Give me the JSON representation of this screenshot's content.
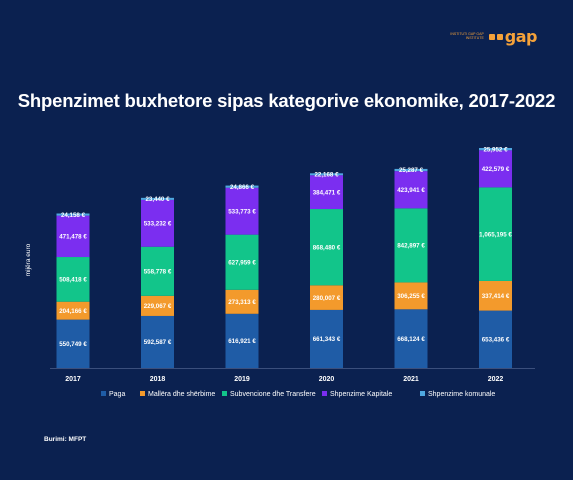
{
  "logo": {
    "tagline": "INSTITUTI GAP GAP INSTITUTE",
    "brand": "gap"
  },
  "colors": {
    "background": "#0b2150",
    "accent": "#f5a23a"
  },
  "source": "Burimi: MFPT",
  "chart_data": {
    "type": "bar",
    "stacked": true,
    "title": "Shpenzimet buxhetore sipas kategorive ekonomike, 2017-2022",
    "ylabel": "mijëra euro",
    "xlabel": "",
    "categories": [
      "2017",
      "2018",
      "2019",
      "2020",
      "2021",
      "2022"
    ],
    "legend_position": "bottom",
    "grid": false,
    "value_suffix": " €",
    "series": [
      {
        "name": "Paga",
        "color": "#1f5ca6",
        "values": [
          550749,
          592587,
          616921,
          661343,
          668124,
          653436
        ],
        "labels": [
          "550,749 €",
          "592,587 €",
          "616,921 €",
          "661,343 €",
          "668,124 €",
          "653,436 €"
        ]
      },
      {
        "name": "Mallëra dhe shërbime",
        "color": "#f39a2c",
        "values": [
          204166,
          229067,
          273313,
          280007,
          306255,
          337414
        ],
        "labels": [
          "204,166 €",
          "229,067 €",
          "273,313 €",
          "280,007 €",
          "306,255 €",
          "337,414 €"
        ]
      },
      {
        "name": "Subvencione dhe Transfere",
        "color": "#12c58a",
        "values": [
          508418,
          558778,
          627959,
          868480,
          842897,
          1065195
        ],
        "labels": [
          "508,418 €",
          "558,778 €",
          "627,959 €",
          "868,480 €",
          "842,897 €",
          "1,065,195 €"
        ]
      },
      {
        "name": "Shpenzime Kapitale",
        "color": "#7b2ef0",
        "values": [
          471478,
          533232,
          533773,
          384471,
          423941,
          422579
        ],
        "labels": [
          "471,478 €",
          "533,232 €",
          "533,773 €",
          "384,471 €",
          "423,941 €",
          "422,579 €"
        ]
      },
      {
        "name": "Shpenzime komunale",
        "color": "#4fa8e0",
        "values": [
          24158,
          23440,
          24866,
          22168,
          25287,
          25952
        ],
        "labels": [
          "24,158 €",
          "23,440 €",
          "24,866 €",
          "22,168 €",
          "25,287 €",
          "25,952 €"
        ]
      }
    ]
  }
}
